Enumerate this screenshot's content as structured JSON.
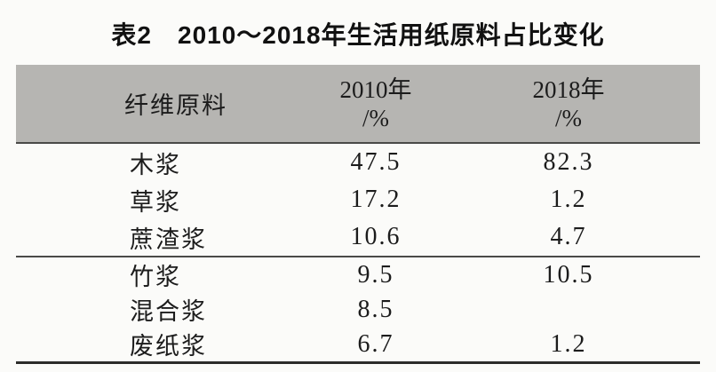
{
  "caption": {
    "full": "表2　2010～2018年生活用纸原料占比变化"
  },
  "table": {
    "header": {
      "material": "纤维原料",
      "col2010": {
        "year": "2010年",
        "unit": "/%"
      },
      "col2018": {
        "year": "2018年",
        "unit": "/%"
      }
    },
    "sections": [
      {
        "rows": [
          {
            "material": "木浆",
            "y2010": "47.5",
            "y2018": "82.3"
          },
          {
            "material": "草浆",
            "y2010": "17.2",
            "y2018": "1.2"
          },
          {
            "material": "蔗渣浆",
            "y2010": "10.6",
            "y2018": "4.7"
          }
        ]
      },
      {
        "rows": [
          {
            "material": "竹浆",
            "y2010": "9.5",
            "y2018": "10.5"
          },
          {
            "material": "混合浆",
            "y2010": "8.5",
            "y2018": ""
          },
          {
            "material": "废纸浆",
            "y2010": "6.7",
            "y2018": "1.2"
          }
        ]
      }
    ]
  },
  "colors": {
    "header_bg": "#b6b5b2",
    "ink": "#1c1c1c",
    "rule": "#4a4a48",
    "rule_heavy": "#2c2c2a",
    "page_bg": "#fbfbf9"
  }
}
